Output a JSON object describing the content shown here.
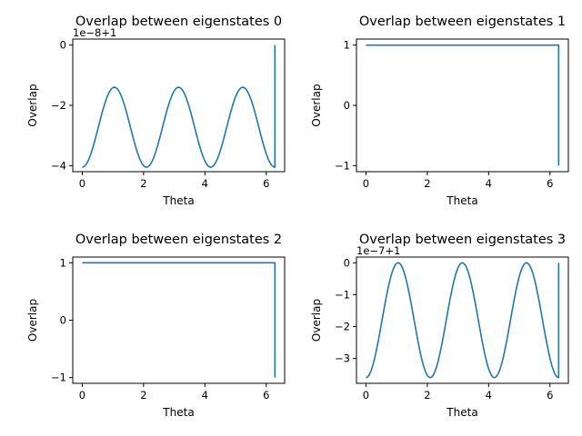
{
  "colors": {
    "series": "#1f77b4"
  },
  "chart_data": [
    {
      "type": "line",
      "title": "Overlap between eigenstates 0",
      "xlabel": "Theta",
      "ylabel": "Overlap",
      "offset_label": "1e−8+1",
      "y_scale": 1e-08,
      "y_offset": 1,
      "xlim": [
        -0.31,
        6.6
      ],
      "ylim": [
        -4.2,
        0.2
      ],
      "xticks": [
        0,
        2,
        4,
        6
      ],
      "yticks": [
        -4,
        -2,
        0
      ],
      "ytick_labels": [
        "−4",
        "−2",
        "0"
      ],
      "curve": {
        "form": "cosine",
        "period": 2.094,
        "min": -4.05,
        "max": -1.4,
        "x_start": 0,
        "x_end": 6.283,
        "end_value": 0
      }
    },
    {
      "type": "line",
      "title": "Overlap between eigenstates 1",
      "xlabel": "Theta",
      "ylabel": "Overlap",
      "offset_label": "",
      "xlim": [
        -0.31,
        6.6
      ],
      "ylim": [
        -1.1,
        1.1
      ],
      "xticks": [
        0,
        2,
        4,
        6
      ],
      "yticks": [
        -1,
        0,
        1
      ],
      "ytick_labels": [
        "−1",
        "0",
        "1"
      ],
      "curve": {
        "form": "constant",
        "value": 1,
        "x_start": 0,
        "x_end": 6.283,
        "end_value": -1
      }
    },
    {
      "type": "line",
      "title": "Overlap between eigenstates 2",
      "xlabel": "Theta",
      "ylabel": "Overlap",
      "offset_label": "",
      "xlim": [
        -0.31,
        6.6
      ],
      "ylim": [
        -1.1,
        1.1
      ],
      "xticks": [
        0,
        2,
        4,
        6
      ],
      "yticks": [
        -1,
        0,
        1
      ],
      "ytick_labels": [
        "−1",
        "0",
        "1"
      ],
      "curve": {
        "form": "constant",
        "value": 1,
        "x_start": 0,
        "x_end": 6.283,
        "end_value": -1
      }
    },
    {
      "type": "line",
      "title": "Overlap between eigenstates 3",
      "xlabel": "Theta",
      "ylabel": "Overlap",
      "offset_label": "1e−7+1",
      "y_scale": 1e-07,
      "y_offset": 1,
      "xlim": [
        -0.31,
        6.6
      ],
      "ylim": [
        -3.78,
        0.18
      ],
      "xticks": [
        0,
        2,
        4,
        6
      ],
      "yticks": [
        -3,
        -2,
        -1,
        0
      ],
      "ytick_labels": [
        "−3",
        "−2",
        "−1",
        "0"
      ],
      "curve": {
        "form": "cosine",
        "period": 2.094,
        "min": -3.6,
        "max": 0,
        "x_start": 0,
        "x_end": 6.283,
        "end_value": 0
      }
    }
  ]
}
